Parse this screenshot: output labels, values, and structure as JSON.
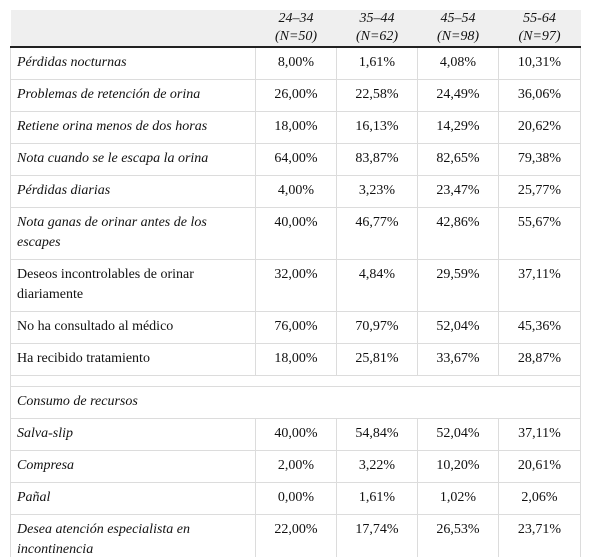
{
  "table": {
    "header": [
      [
        "24–34",
        "(N=50)"
      ],
      [
        "35–44",
        "(N=62)"
      ],
      [
        "45–54",
        "(N=98)"
      ],
      [
        "55-64",
        "(N=97)"
      ]
    ],
    "rows": [
      {
        "label": "Pérdidas nocturnas",
        "values": [
          "8,00%",
          "1,61%",
          "4,08%",
          "10,31%"
        ]
      },
      {
        "label": "Problemas de retención de orina",
        "values": [
          "26,00%",
          "22,58%",
          "24,49%",
          "36,06%"
        ]
      },
      {
        "label": "Retiene orina menos de dos horas",
        "values": [
          "18,00%",
          "16,13%",
          "14,29%",
          "20,62%"
        ]
      },
      {
        "label": "Nota cuando se le escapa la orina",
        "values": [
          "64,00%",
          "83,87%",
          "82,65%",
          "79,38%"
        ]
      },
      {
        "label": "Pérdidas diarias",
        "values": [
          "4,00%",
          "3,23%",
          "23,47%",
          "25,77%"
        ]
      },
      {
        "label": "Nota ganas de orinar antes de los escapes",
        "values": [
          "40,00%",
          "46,77%",
          "42,86%",
          "55,67%"
        ]
      },
      {
        "label": "Deseos incontrolables de orinar diariamente",
        "values": [
          "32,00%",
          "4,84%",
          "29,59%",
          "37,11%"
        ]
      },
      {
        "label": "No ha consultado al médico",
        "values": [
          "76,00%",
          "70,97%",
          "52,04%",
          "45,36%"
        ]
      },
      {
        "label": "Ha recibido tratamiento",
        "values": [
          "18,00%",
          "25,81%",
          "33,67%",
          "28,87%"
        ]
      }
    ],
    "section": {
      "title": "Consumo de recursos",
      "rows": [
        {
          "label": "Salva-slip",
          "values": [
            "40,00%",
            "54,84%",
            "52,04%",
            "37,11%"
          ]
        },
        {
          "label": "Compresa",
          "values": [
            "2,00%",
            "3,22%",
            "10,20%",
            "20,61%"
          ]
        },
        {
          "label": "Pañal",
          "values": [
            "0,00%",
            "1,61%",
            "1,02%",
            "2,06%"
          ]
        },
        {
          "label": "Desea atención especialista en incontinencia",
          "values": [
            "22,00%",
            "17,74%",
            "26,53%",
            "23,71%"
          ]
        }
      ]
    }
  }
}
